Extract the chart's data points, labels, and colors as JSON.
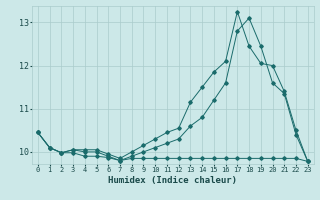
{
  "xlabel": "Humidex (Indice chaleur)",
  "background_color": "#cce8e8",
  "grid_color": "#aacccc",
  "line_color": "#1a6b6b",
  "xlim": [
    -0.5,
    23.5
  ],
  "ylim": [
    9.72,
    13.38
  ],
  "xticks": [
    0,
    1,
    2,
    3,
    4,
    5,
    6,
    7,
    8,
    9,
    10,
    11,
    12,
    13,
    14,
    15,
    16,
    17,
    18,
    19,
    20,
    21,
    22,
    23
  ],
  "yticks": [
    10,
    11,
    12,
    13
  ],
  "line1_x": [
    0,
    1,
    2,
    3,
    4,
    5,
    6,
    7,
    8,
    9,
    10,
    11,
    12,
    13,
    14,
    15,
    16,
    17,
    18,
    19,
    20,
    21,
    22,
    23
  ],
  "line1_y": [
    10.45,
    10.1,
    9.98,
    9.98,
    9.9,
    9.9,
    9.87,
    9.8,
    9.85,
    9.85,
    9.85,
    9.85,
    9.85,
    9.85,
    9.85,
    9.85,
    9.85,
    9.85,
    9.85,
    9.85,
    9.85,
    9.85,
    9.85,
    9.78
  ],
  "line2_x": [
    0,
    1,
    2,
    3,
    4,
    5,
    6,
    7,
    8,
    9,
    10,
    11,
    12,
    13,
    14,
    15,
    16,
    17,
    18,
    19,
    20,
    21,
    22,
    23
  ],
  "line2_y": [
    10.45,
    10.1,
    9.98,
    10.05,
    10.05,
    10.05,
    9.95,
    9.85,
    10.0,
    10.15,
    10.3,
    10.45,
    10.55,
    11.15,
    11.5,
    11.85,
    12.1,
    13.25,
    12.45,
    12.05,
    12.0,
    11.4,
    10.5,
    9.78
  ],
  "line3_x": [
    0,
    1,
    2,
    3,
    4,
    5,
    6,
    7,
    8,
    9,
    10,
    11,
    12,
    13,
    14,
    15,
    16,
    17,
    18,
    19,
    20,
    21,
    22,
    23
  ],
  "line3_y": [
    10.45,
    10.1,
    9.98,
    10.05,
    10.0,
    10.0,
    9.9,
    9.8,
    9.9,
    10.0,
    10.1,
    10.2,
    10.3,
    10.6,
    10.8,
    11.2,
    11.6,
    12.8,
    13.1,
    12.45,
    11.6,
    11.35,
    10.4,
    9.78
  ]
}
